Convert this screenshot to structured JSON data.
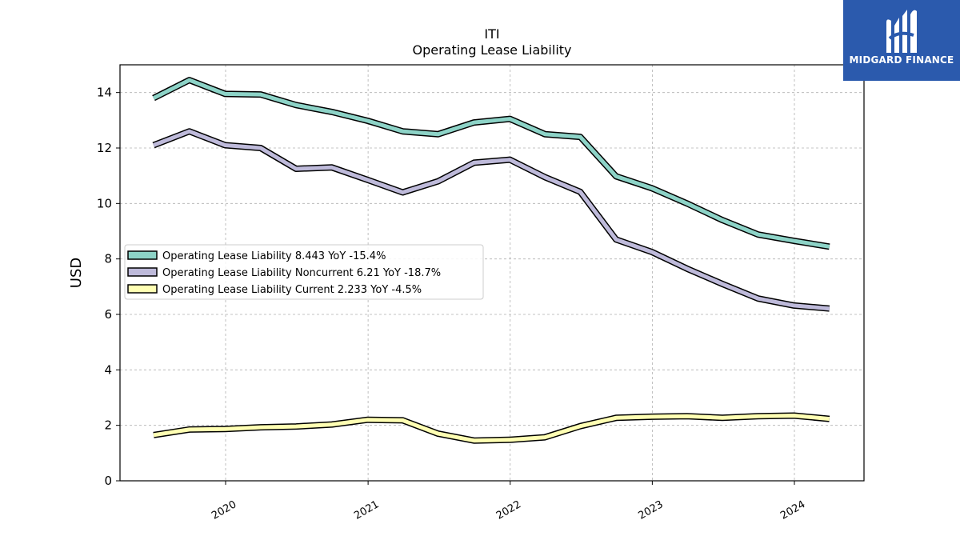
{
  "chart_data": {
    "type": "line",
    "title": "ITI",
    "subtitle": "Operating Lease Liability",
    "xlabel": "",
    "ylabel": "USD",
    "ylim": [
      0,
      15
    ],
    "yticks": [
      0,
      2,
      4,
      6,
      8,
      10,
      12,
      14
    ],
    "xticks": [
      "2020",
      "2021",
      "2022",
      "2023",
      "2024"
    ],
    "grid": true,
    "legend_position": "center-left",
    "x": [
      "2019-06-30",
      "2019-09-30",
      "2019-12-31",
      "2020-03-31",
      "2020-06-30",
      "2020-09-30",
      "2020-12-31",
      "2021-03-31",
      "2021-06-30",
      "2021-09-30",
      "2021-12-31",
      "2022-03-31",
      "2022-06-30",
      "2022-09-30",
      "2022-12-31",
      "2023-03-31",
      "2023-06-30",
      "2023-09-30",
      "2023-12-31",
      "2024-03-31"
    ],
    "series": [
      {
        "name": "Operating Lease Liability  8.443 YoY -15.4%",
        "color": "#8dd3c7",
        "values": [
          13.8,
          14.45,
          13.95,
          13.93,
          13.55,
          13.3,
          12.98,
          12.6,
          12.5,
          12.92,
          13.05,
          12.5,
          12.4,
          10.98,
          10.55,
          10.0,
          9.4,
          8.88,
          8.65,
          8.443
        ]
      },
      {
        "name": "Operating Lease Liability Noncurrent  6.21 YoY -18.7%",
        "color": "#bebada",
        "values": [
          12.1,
          12.6,
          12.1,
          12.0,
          11.25,
          11.3,
          10.85,
          10.4,
          10.8,
          11.47,
          11.58,
          10.95,
          10.42,
          8.7,
          8.25,
          7.65,
          7.1,
          6.57,
          6.32,
          6.21
        ]
      },
      {
        "name": "Operating Lease Liability Current  2.233 YoY -4.5%",
        "color": "#ffffb3",
        "values": [
          1.65,
          1.85,
          1.87,
          1.93,
          1.96,
          2.03,
          2.2,
          2.18,
          1.7,
          1.45,
          1.48,
          1.57,
          1.97,
          2.27,
          2.31,
          2.33,
          2.27,
          2.33,
          2.35,
          2.233
        ]
      }
    ]
  },
  "logo": {
    "text": "MIDGARD FINANCE",
    "name": "midgard-finance-logo"
  }
}
